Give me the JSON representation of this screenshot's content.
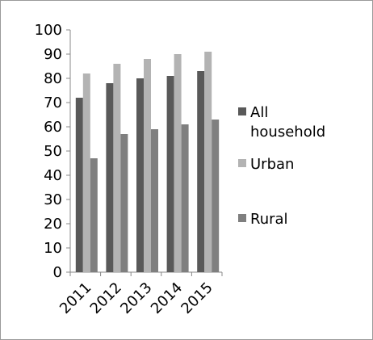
{
  "chart_data": {
    "type": "bar",
    "categories": [
      "2011",
      "2012",
      "2013",
      "2014",
      "2015"
    ],
    "series": [
      {
        "name": "All household",
        "label_lines": [
          "All",
          "household"
        ],
        "color": "#595959",
        "values": [
          72,
          78,
          80,
          81,
          83
        ]
      },
      {
        "name": "Urban",
        "label_lines": [
          "Urban"
        ],
        "color": "#b3b3b3",
        "values": [
          82,
          86,
          88,
          90,
          91
        ]
      },
      {
        "name": "Rural",
        "label_lines": [
          "Rural"
        ],
        "color": "#7f7f7f",
        "values": [
          47,
          57,
          59,
          61,
          63
        ]
      }
    ],
    "ylim": [
      0,
      100
    ],
    "yticks": [
      0,
      10,
      20,
      30,
      40,
      50,
      60,
      70,
      80,
      90,
      100
    ],
    "grid": false,
    "legend_position": "right",
    "title": "",
    "xlabel": "",
    "ylabel": ""
  }
}
